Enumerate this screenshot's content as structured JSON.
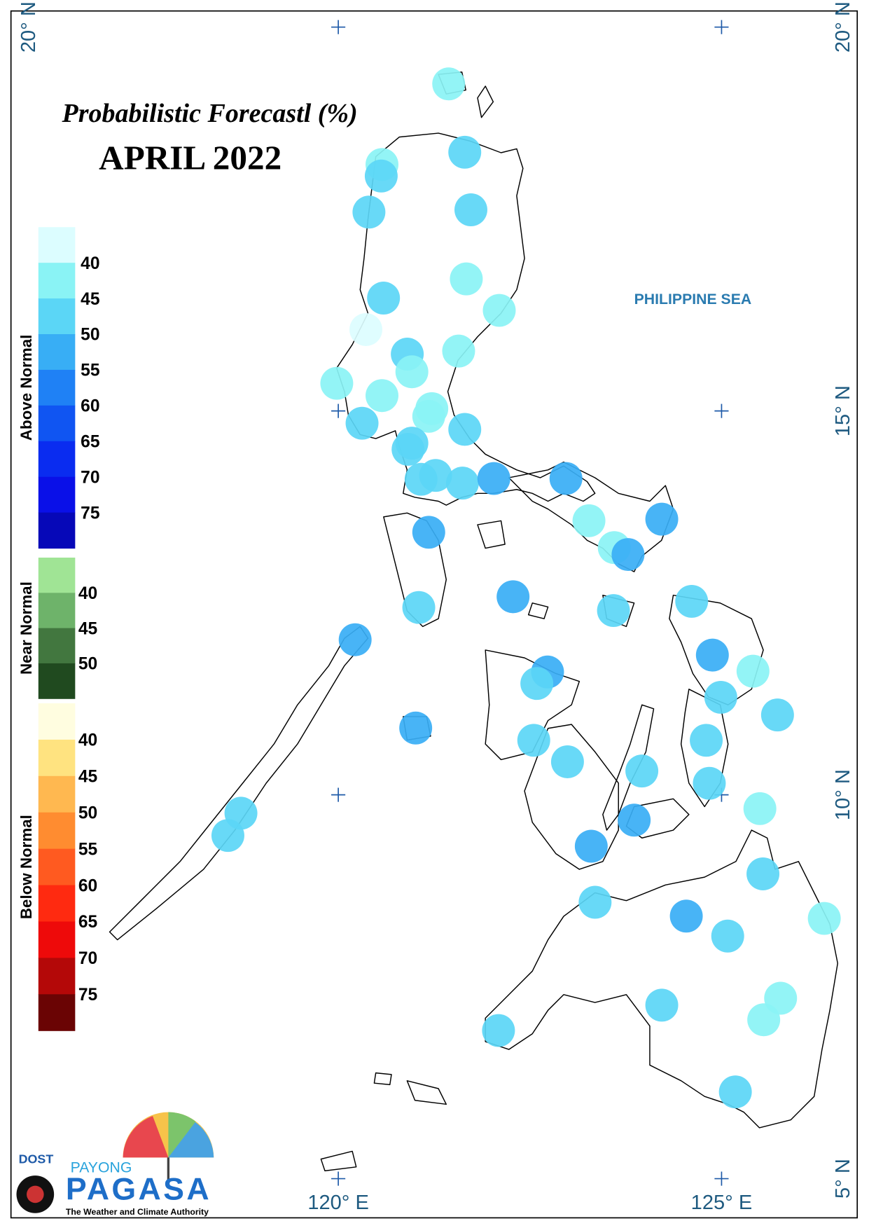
{
  "title": "Probabilistic Forecastl (%)",
  "subtitle": "APRIL 2022",
  "sea_label": "PHILIPPINE SEA",
  "legend": {
    "groups": [
      {
        "name": "Above Normal",
        "labels": [
          40,
          45,
          50,
          55,
          60,
          65,
          70,
          75
        ],
        "colors": [
          "#dcfdff",
          "#8af3f5",
          "#5bd6f6",
          "#38aef5",
          "#1f81f5",
          "#1055f2",
          "#0a2cf0",
          "#0a10e8",
          "#0608b8"
        ]
      },
      {
        "name": "Near Normal",
        "labels": [
          40,
          45,
          50
        ],
        "colors": [
          "#a0e495",
          "#6eb36a",
          "#42773f",
          "#204a1f"
        ]
      },
      {
        "name": "Below Normal",
        "labels": [
          40,
          45,
          50,
          55,
          60,
          65,
          70,
          75
        ],
        "colors": [
          "#fffde0",
          "#ffe380",
          "#ffb850",
          "#ff8c30",
          "#ff5a20",
          "#ff2a10",
          "#ee0a0a",
          "#b40808",
          "#6a0404"
        ]
      }
    ]
  },
  "map": {
    "xlim": [
      115.73,
      126.77
    ],
    "ylim": [
      4.49,
      20.21
    ],
    "lon_ticks": [
      {
        "value": 120,
        "label": "120° E"
      },
      {
        "value": 125,
        "label": "125° E"
      }
    ],
    "lat_ticks": [
      {
        "value": 5,
        "label": "5° N"
      },
      {
        "value": 10,
        "label": "10° N"
      },
      {
        "value": 15,
        "label": "15° N"
      },
      {
        "value": 20,
        "label": "20° N"
      }
    ],
    "stations": [
      {
        "lon": 121.44,
        "lat": 19.26,
        "value": 42
      },
      {
        "lon": 121.65,
        "lat": 18.37,
        "value": 47
      },
      {
        "lon": 120.57,
        "lat": 18.21,
        "value": 42
      },
      {
        "lon": 120.56,
        "lat": 18.06,
        "value": 47
      },
      {
        "lon": 120.4,
        "lat": 17.59,
        "value": 47
      },
      {
        "lon": 121.73,
        "lat": 17.62,
        "value": 47
      },
      {
        "lon": 121.67,
        "lat": 16.72,
        "value": 42
      },
      {
        "lon": 120.59,
        "lat": 16.47,
        "value": 47
      },
      {
        "lon": 122.1,
        "lat": 16.31,
        "value": 42
      },
      {
        "lon": 120.36,
        "lat": 16.06,
        "value": 37
      },
      {
        "lon": 121.57,
        "lat": 15.78,
        "value": 42
      },
      {
        "lon": 120.9,
        "lat": 15.74,
        "value": 47
      },
      {
        "lon": 120.96,
        "lat": 15.51,
        "value": 42
      },
      {
        "lon": 119.98,
        "lat": 15.36,
        "value": 42
      },
      {
        "lon": 120.57,
        "lat": 15.2,
        "value": 42
      },
      {
        "lon": 121.22,
        "lat": 15.03,
        "value": 42
      },
      {
        "lon": 121.18,
        "lat": 14.93,
        "value": 42
      },
      {
        "lon": 120.31,
        "lat": 14.84,
        "value": 47
      },
      {
        "lon": 121.65,
        "lat": 14.76,
        "value": 47
      },
      {
        "lon": 120.96,
        "lat": 14.58,
        "value": 47
      },
      {
        "lon": 120.91,
        "lat": 14.5,
        "value": 47
      },
      {
        "lon": 121.08,
        "lat": 14.11,
        "value": 47
      },
      {
        "lon": 121.27,
        "lat": 14.16,
        "value": 47
      },
      {
        "lon": 121.62,
        "lat": 14.06,
        "value": 47
      },
      {
        "lon": 122.03,
        "lat": 14.12,
        "value": 52
      },
      {
        "lon": 122.97,
        "lat": 14.12,
        "value": 52
      },
      {
        "lon": 123.27,
        "lat": 13.57,
        "value": 42
      },
      {
        "lon": 124.22,
        "lat": 13.59,
        "value": 52
      },
      {
        "lon": 123.6,
        "lat": 13.22,
        "value": 42
      },
      {
        "lon": 123.78,
        "lat": 13.13,
        "value": 52
      },
      {
        "lon": 121.18,
        "lat": 13.42,
        "value": 52
      },
      {
        "lon": 122.28,
        "lat": 12.58,
        "value": 52
      },
      {
        "lon": 121.05,
        "lat": 12.44,
        "value": 47
      },
      {
        "lon": 123.59,
        "lat": 12.4,
        "value": 47
      },
      {
        "lon": 124.61,
        "lat": 12.52,
        "value": 47
      },
      {
        "lon": 120.22,
        "lat": 12.02,
        "value": 52
      },
      {
        "lon": 124.88,
        "lat": 11.82,
        "value": 52
      },
      {
        "lon": 125.41,
        "lat": 11.61,
        "value": 42
      },
      {
        "lon": 122.73,
        "lat": 11.6,
        "value": 52
      },
      {
        "lon": 122.59,
        "lat": 11.45,
        "value": 47
      },
      {
        "lon": 124.99,
        "lat": 11.27,
        "value": 47
      },
      {
        "lon": 125.73,
        "lat": 11.04,
        "value": 47
      },
      {
        "lon": 121.01,
        "lat": 10.87,
        "value": 52
      },
      {
        "lon": 122.55,
        "lat": 10.71,
        "value": 47
      },
      {
        "lon": 124.8,
        "lat": 10.71,
        "value": 47
      },
      {
        "lon": 122.99,
        "lat": 10.43,
        "value": 47
      },
      {
        "lon": 123.96,
        "lat": 10.31,
        "value": 47
      },
      {
        "lon": 124.84,
        "lat": 10.15,
        "value": 47
      },
      {
        "lon": 118.73,
        "lat": 9.76,
        "value": 47
      },
      {
        "lon": 118.56,
        "lat": 9.47,
        "value": 47
      },
      {
        "lon": 125.5,
        "lat": 9.82,
        "value": 42
      },
      {
        "lon": 123.86,
        "lat": 9.67,
        "value": 52
      },
      {
        "lon": 123.3,
        "lat": 9.33,
        "value": 52
      },
      {
        "lon": 125.54,
        "lat": 8.97,
        "value": 47
      },
      {
        "lon": 123.35,
        "lat": 8.6,
        "value": 47
      },
      {
        "lon": 124.54,
        "lat": 8.42,
        "value": 52
      },
      {
        "lon": 125.08,
        "lat": 8.16,
        "value": 47
      },
      {
        "lon": 126.34,
        "lat": 8.39,
        "value": 42
      },
      {
        "lon": 124.22,
        "lat": 7.26,
        "value": 47
      },
      {
        "lon": 125.77,
        "lat": 7.35,
        "value": 42
      },
      {
        "lon": 125.55,
        "lat": 7.07,
        "value": 42
      },
      {
        "lon": 122.09,
        "lat": 6.93,
        "value": 47
      },
      {
        "lon": 125.18,
        "lat": 6.13,
        "value": 47
      }
    ]
  },
  "logo": {
    "agency": "DOST",
    "line1": "PAYONG",
    "line2": "PAGASA",
    "tagline": "The Weather and Climate Authority"
  }
}
